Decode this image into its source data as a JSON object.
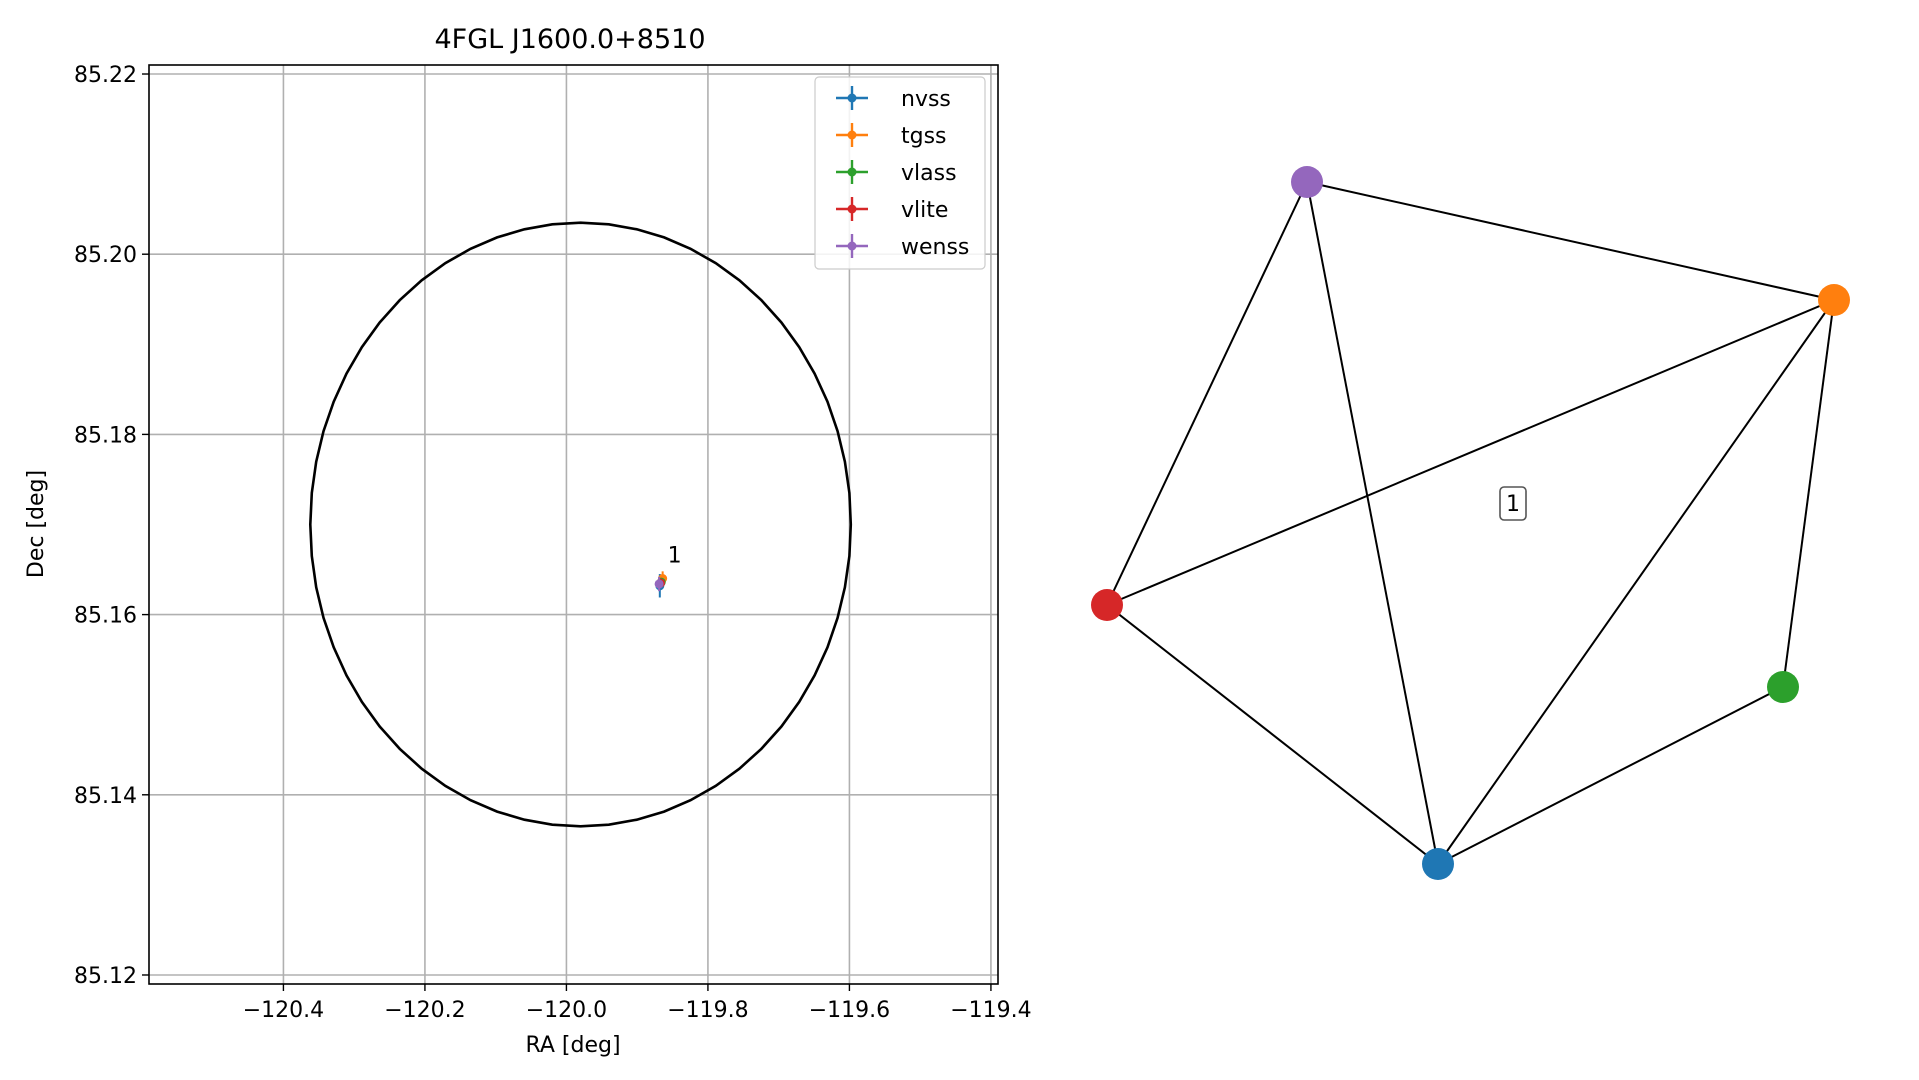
{
  "chart_data": [
    {
      "type": "scatter",
      "title": "4FGL J1600.0+8510",
      "xlabel": "RA [deg]",
      "ylabel": "Dec [deg]",
      "xlim": [
        -120.59,
        -119.39
      ],
      "ylim": [
        85.119,
        85.221
      ],
      "xticks": [
        -120.4,
        -120.2,
        -120.0,
        -119.8,
        -119.6,
        -119.4
      ],
      "xtick_labels": [
        "−120.4",
        "−120.2",
        "−120.0",
        "−119.8",
        "−119.6",
        "−119.4"
      ],
      "yticks": [
        85.12,
        85.14,
        85.16,
        85.18,
        85.2,
        85.22
      ],
      "ytick_labels": [
        "85.12",
        "85.14",
        "85.16",
        "85.18",
        "85.20",
        "85.22"
      ],
      "grid": true,
      "legend_position": "top-right",
      "series": [
        {
          "name": "nvss",
          "color": "#1f77b4",
          "x": -119.868,
          "y": 85.1632,
          "xerr": 0.003,
          "yerr": 0.0013
        },
        {
          "name": "tgss",
          "color": "#ff7f0e",
          "x": -119.864,
          "y": 85.164,
          "xerr": 0.003,
          "yerr": 0.0008
        },
        {
          "name": "vlass",
          "color": "#2ca02c",
          "x": -119.866,
          "y": 85.1636,
          "xerr": 0.001,
          "yerr": 0.0003
        },
        {
          "name": "vlite",
          "color": "#d62728",
          "x": -119.867,
          "y": 85.1635,
          "xerr": 0.002,
          "yerr": 0.0005
        },
        {
          "name": "wenss",
          "color": "#9467bd",
          "x": -119.869,
          "y": 85.1634,
          "xerr": 0.003,
          "yerr": 0.0008
        }
      ],
      "annotations": [
        {
          "text": "1",
          "x": -119.857,
          "y": 85.1658
        }
      ],
      "region_ellipse": {
        "center": [
          -119.98,
          85.17
        ],
        "ra_radius": 0.382,
        "dec_radius": 0.0335
      }
    },
    {
      "type": "network",
      "nodes": [
        {
          "name": "wenss",
          "color": "#9467bd"
        },
        {
          "name": "tgss",
          "color": "#ff7f0e"
        },
        {
          "name": "vlite",
          "color": "#d62728"
        },
        {
          "name": "vlass",
          "color": "#2ca02c"
        },
        {
          "name": "nvss",
          "color": "#1f77b4"
        }
      ],
      "edges": [
        [
          "wenss",
          "tgss"
        ],
        [
          "wenss",
          "vlite"
        ],
        [
          "wenss",
          "nvss"
        ],
        [
          "tgss",
          "vlite"
        ],
        [
          "tgss",
          "nvss"
        ],
        [
          "tgss",
          "vlass"
        ],
        [
          "vlite",
          "nvss"
        ],
        [
          "nvss",
          "vlass"
        ]
      ],
      "cluster_label": "1"
    }
  ]
}
